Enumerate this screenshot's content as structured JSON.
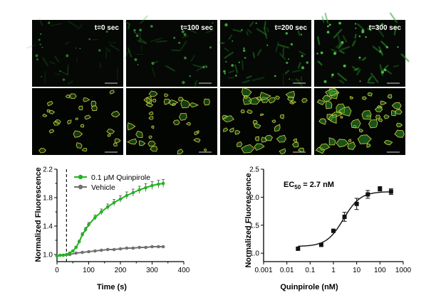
{
  "panels": [
    {
      "label": "t=0 sec",
      "cells": 0.35
    },
    {
      "label": "t=100  sec",
      "cells": 0.5
    },
    {
      "label": "t=200  sec",
      "cells": 0.75
    },
    {
      "label": "t=300 sec",
      "cells": 0.95
    }
  ],
  "colors": {
    "agonist": "#22b41e",
    "vehicle": "#707070",
    "fluor": "#2f9a2f",
    "outline": "#d8d040",
    "dose": "#111111"
  },
  "chart_data": [
    {
      "type": "line",
      "xlabel": "Time (s)",
      "ylabel": "Normalized Fluorescence",
      "xlim": [
        0,
        400
      ],
      "ylim": [
        0.9,
        2.2
      ],
      "xticks": [
        "0",
        "100",
        "200",
        "300",
        "400"
      ],
      "yticks": [
        "1.0",
        "1.4",
        "1.8",
        "2.2"
      ],
      "legend_position": "top-left",
      "annotations": [
        {
          "type": "vertical-dashed-line",
          "x": 30
        }
      ],
      "series": [
        {
          "name": "0.1 μM Quinpirole",
          "x": [
            0,
            10,
            20,
            30,
            40,
            50,
            60,
            70,
            80,
            90,
            100,
            120,
            140,
            160,
            180,
            200,
            220,
            240,
            260,
            280,
            300,
            320,
            335
          ],
          "y": [
            0.98,
            0.99,
            0.99,
            1.0,
            1.02,
            1.05,
            1.1,
            1.18,
            1.28,
            1.35,
            1.42,
            1.52,
            1.6,
            1.67,
            1.73,
            1.78,
            1.83,
            1.87,
            1.91,
            1.94,
            1.97,
            1.99,
            2.0
          ],
          "error": [
            0.005,
            0.005,
            0.005,
            0.005,
            0.01,
            0.01,
            0.015,
            0.02,
            0.025,
            0.03,
            0.03,
            0.035,
            0.04,
            0.04,
            0.045,
            0.045,
            0.05,
            0.05,
            0.05,
            0.055,
            0.055,
            0.055,
            0.055
          ]
        },
        {
          "name": "Vehicle",
          "x": [
            0,
            20,
            40,
            60,
            80,
            100,
            120,
            140,
            160,
            180,
            200,
            220,
            240,
            260,
            280,
            300,
            320,
            335
          ],
          "y": [
            0.98,
            0.99,
            1.0,
            1.02,
            1.03,
            1.04,
            1.05,
            1.06,
            1.07,
            1.07,
            1.08,
            1.09,
            1.09,
            1.1,
            1.1,
            1.11,
            1.11,
            1.11
          ],
          "error": [
            0.005,
            0.005,
            0.005,
            0.005,
            0.005,
            0.005,
            0.005,
            0.005,
            0.005,
            0.005,
            0.005,
            0.005,
            0.005,
            0.005,
            0.005,
            0.005,
            0.005,
            0.005
          ]
        }
      ]
    },
    {
      "type": "scatter",
      "xlabel": "Quinpirole (nM)",
      "ylabel": "Normalized Fluorescence",
      "xscale": "log",
      "xlim": [
        0.001,
        1000
      ],
      "ylim": [
        0.85,
        2.5
      ],
      "xticks": [
        "0.001",
        "0.01",
        "0.1",
        "1",
        "10",
        "100",
        "1000"
      ],
      "yticks": [
        "1.0",
        "1.5",
        "2.0",
        "2.5"
      ],
      "annotation": {
        "text": "EC",
        "subscript": "50",
        "suffix": " = 2.7 nM"
      },
      "points": {
        "x": [
          0.03,
          0.3,
          1,
          3,
          10,
          30,
          100,
          300
        ],
        "y": [
          1.08,
          1.15,
          1.4,
          1.65,
          1.88,
          2.05,
          2.15,
          2.1
        ],
        "error": [
          0.01,
          0.01,
          0.03,
          0.08,
          0.1,
          0.07,
          0.04,
          0.05
        ]
      },
      "fit": {
        "bottom": 1.12,
        "top": 2.1,
        "ec50": 2.7,
        "hill": 1.2
      }
    }
  ]
}
